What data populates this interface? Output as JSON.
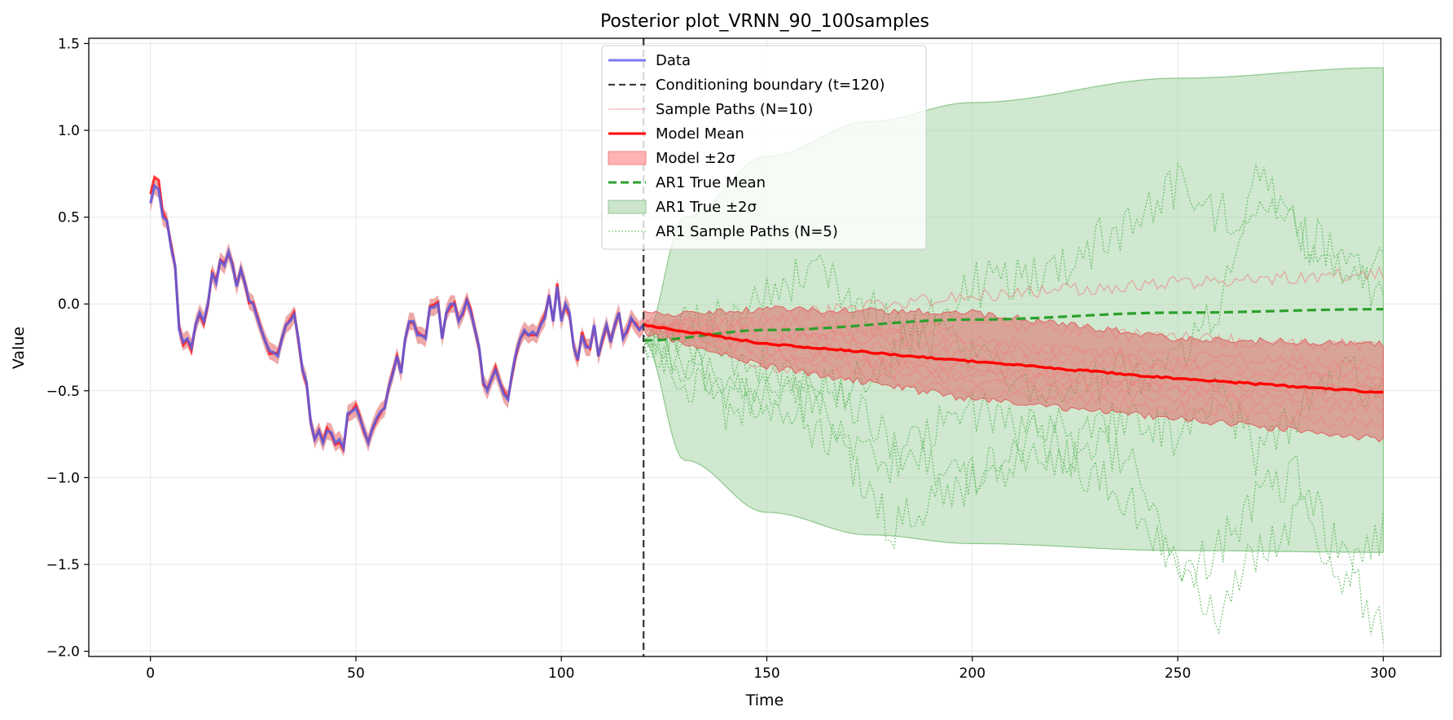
{
  "chart_data": {
    "type": "line",
    "title": "Posterior plot_VRNN_90_100samples",
    "xlabel": "Time",
    "ylabel": "Value",
    "xlim": [
      -15,
      314
    ],
    "ylim": [
      -2.03,
      1.53
    ],
    "xticks": [
      0,
      50,
      100,
      150,
      200,
      250,
      300
    ],
    "xtick_labels": [
      "0",
      "50",
      "100",
      "150",
      "200",
      "250",
      "300"
    ],
    "yticks": [
      -2.0,
      -1.5,
      -1.0,
      -0.5,
      0.0,
      0.5,
      1.0,
      1.5
    ],
    "ytick_labels": [
      "−2.0",
      "−1.5",
      "−1.0",
      "−0.5",
      "0.0",
      "0.5",
      "1.0",
      "1.5"
    ],
    "grid": true,
    "legend_position": "top-center",
    "conditioning_boundary": 120,
    "legend": [
      {
        "label": "Data",
        "kind": "line",
        "color": "#7a7af0",
        "dash": "",
        "width": 3
      },
      {
        "label": "Conditioning boundary (t=120)",
        "kind": "line",
        "color": "#404040",
        "dash": "8,5",
        "width": 2.2
      },
      {
        "label": "Sample Paths (N=10)",
        "kind": "line",
        "color": "#f4a6a6",
        "dash": "",
        "width": 1
      },
      {
        "label": "Model Mean",
        "kind": "line",
        "color": "#ff0000",
        "dash": "",
        "width": 3
      },
      {
        "label": "Model ±2σ",
        "kind": "patch",
        "color": "#ffb3b3",
        "edge": "#f08080"
      },
      {
        "label": "AR1 True Mean",
        "kind": "line",
        "color": "#2ca02c",
        "dash": "10,5",
        "width": 3
      },
      {
        "label": "AR1 True ±2σ",
        "kind": "patch",
        "color": "#cce5cc",
        "edge": "#90c890"
      },
      {
        "label": "AR1 Sample Paths (N=5)",
        "kind": "line",
        "color": "#6abf6a",
        "dash": "2,2",
        "width": 1
      }
    ],
    "data_series": {
      "name": "Data",
      "x": [
        0,
        1,
        2,
        3,
        4,
        5,
        6,
        7,
        8,
        9,
        10,
        11,
        12,
        13,
        14,
        15,
        16,
        17,
        18,
        19,
        20,
        21,
        22,
        23,
        24,
        25,
        26,
        27,
        28,
        29,
        30,
        31,
        32,
        33,
        34,
        35,
        36,
        37,
        38,
        39,
        40,
        41,
        42,
        43,
        44,
        45,
        46,
        47,
        48,
        49,
        50,
        51,
        52,
        53,
        54,
        55,
        56,
        57,
        58,
        59,
        60,
        61,
        62,
        63,
        64,
        65,
        66,
        67,
        68,
        69,
        70,
        71,
        72,
        73,
        74,
        75,
        76,
        77,
        78,
        79,
        80,
        81,
        82,
        83,
        84,
        85,
        86,
        87,
        88,
        89,
        90,
        91,
        92,
        93,
        94,
        95,
        96,
        97,
        98,
        99,
        100,
        101,
        102,
        103,
        104,
        105,
        106,
        107,
        108,
        109,
        110,
        111,
        112,
        113,
        114,
        115,
        116,
        117,
        118,
        119,
        120
      ],
      "y": [
        0.58,
        0.68,
        0.66,
        0.5,
        0.48,
        0.33,
        0.22,
        -0.15,
        -0.22,
        -0.2,
        -0.25,
        -0.12,
        -0.05,
        -0.1,
        0.0,
        0.18,
        0.12,
        0.25,
        0.22,
        0.3,
        0.22,
        0.1,
        0.2,
        0.12,
        0.02,
        0.0,
        -0.08,
        -0.15,
        -0.22,
        -0.27,
        -0.28,
        -0.3,
        -0.2,
        -0.12,
        -0.1,
        -0.06,
        -0.2,
        -0.38,
        -0.45,
        -0.68,
        -0.78,
        -0.73,
        -0.8,
        -0.73,
        -0.74,
        -0.8,
        -0.78,
        -0.83,
        -0.63,
        -0.62,
        -0.6,
        -0.66,
        -0.73,
        -0.8,
        -0.72,
        -0.66,
        -0.62,
        -0.6,
        -0.48,
        -0.4,
        -0.3,
        -0.4,
        -0.2,
        -0.1,
        -0.1,
        -0.18,
        -0.18,
        -0.2,
        -0.02,
        -0.02,
        0.0,
        -0.2,
        -0.05,
        0.0,
        0.0,
        -0.1,
        -0.05,
        0.02,
        -0.05,
        -0.15,
        -0.25,
        -0.45,
        -0.5,
        -0.43,
        -0.38,
        -0.45,
        -0.52,
        -0.55,
        -0.4,
        -0.28,
        -0.2,
        -0.15,
        -0.18,
        -0.16,
        -0.18,
        -0.12,
        -0.08,
        0.05,
        -0.1,
        0.1,
        -0.1,
        0.0,
        -0.05,
        -0.25,
        -0.32,
        -0.18,
        -0.25,
        -0.25,
        -0.12,
        -0.3,
        -0.2,
        -0.12,
        -0.22,
        -0.12,
        -0.05,
        -0.2,
        -0.15,
        -0.08,
        -0.12,
        -0.15,
        -0.12
      ]
    },
    "model_band_history": {
      "name": "Model ±2σ (conditioned region)",
      "half_width": 0.05
    },
    "model_mean": {
      "name": "Model Mean",
      "x": [
        120,
        150,
        200,
        250,
        300
      ],
      "y": [
        -0.12,
        -0.23,
        -0.33,
        -0.43,
        -0.51
      ]
    },
    "model_band": {
      "name": "Model ±2σ",
      "x": [
        120,
        150,
        200,
        250,
        300
      ],
      "lower": [
        -0.16,
        -0.36,
        -0.55,
        -0.66,
        -0.78
      ],
      "upper": [
        -0.06,
        -0.03,
        -0.05,
        -0.2,
        -0.23
      ]
    },
    "ar1_mean": {
      "name": "AR1 True Mean",
      "x": [
        120,
        150,
        200,
        250,
        300
      ],
      "y": [
        -0.21,
        -0.15,
        -0.09,
        -0.05,
        -0.03
      ]
    },
    "ar1_band": {
      "name": "AR1 True ±2σ",
      "x": [
        120,
        130,
        150,
        175,
        200,
        250,
        300
      ],
      "lower": [
        -0.21,
        -0.9,
        -1.2,
        -1.33,
        -1.38,
        -1.42,
        -1.43
      ],
      "upper": [
        -0.21,
        0.5,
        0.85,
        1.05,
        1.16,
        1.3,
        1.36
      ]
    },
    "sample_paths": [
      {
        "x": [
          120,
          150,
          200,
          250,
          300
        ],
        "y": [
          -0.12,
          -0.08,
          0.05,
          0.12,
          0.18
        ]
      },
      {
        "x": [
          120,
          150,
          200,
          250,
          300
        ],
        "y": [
          -0.12,
          -0.2,
          -0.1,
          -0.2,
          -0.25
        ]
      },
      {
        "x": [
          120,
          150,
          200,
          250,
          300
        ],
        "y": [
          -0.12,
          -0.25,
          -0.35,
          -0.45,
          -0.5
        ]
      },
      {
        "x": [
          120,
          150,
          200,
          250,
          300
        ],
        "y": [
          -0.12,
          -0.3,
          -0.45,
          -0.55,
          -0.6
        ]
      },
      {
        "x": [
          120,
          150,
          200,
          250,
          300
        ],
        "y": [
          -0.12,
          -0.18,
          -0.3,
          -0.38,
          -0.45
        ]
      },
      {
        "x": [
          120,
          150,
          200,
          250,
          300
        ],
        "y": [
          -0.12,
          -0.35,
          -0.5,
          -0.6,
          -0.7
        ]
      },
      {
        "x": [
          120,
          150,
          200,
          250,
          300
        ],
        "y": [
          -0.12,
          -0.15,
          -0.25,
          -0.3,
          -0.35
        ]
      },
      {
        "x": [
          120,
          150,
          200,
          250,
          300
        ],
        "y": [
          -0.12,
          -0.22,
          -0.4,
          -0.5,
          -0.55
        ]
      },
      {
        "x": [
          120,
          150,
          200,
          250,
          300
        ],
        "y": [
          -0.12,
          -0.1,
          -0.2,
          -0.35,
          -0.4
        ]
      },
      {
        "x": [
          120,
          150,
          200,
          250,
          300
        ],
        "y": [
          -0.12,
          -0.28,
          -0.38,
          -0.48,
          -0.5
        ]
      }
    ],
    "ar1_sample_paths": [
      {
        "x": [
          120,
          140,
          160,
          180,
          200,
          220,
          240,
          250,
          260,
          270,
          280,
          290,
          300
        ],
        "y": [
          -0.21,
          -0.4,
          -0.6,
          -0.3,
          0.1,
          0.2,
          0.5,
          0.7,
          0.5,
          0.6,
          0.4,
          0.2,
          0.3
        ]
      },
      {
        "x": [
          120,
          140,
          160,
          180,
          200,
          220,
          240,
          250,
          260,
          270,
          280,
          290,
          300
        ],
        "y": [
          -0.21,
          -0.5,
          -0.7,
          -0.9,
          -0.6,
          -0.8,
          -1.2,
          -1.5,
          -1.8,
          -1.4,
          -1.2,
          -1.6,
          -1.3
        ]
      },
      {
        "x": [
          120,
          140,
          160,
          180,
          200,
          220,
          240,
          250,
          260,
          270,
          280,
          290,
          300
        ],
        "y": [
          -0.21,
          -0.3,
          -0.5,
          -1.3,
          -1.0,
          -0.7,
          -0.9,
          -1.6,
          -1.4,
          -1.1,
          -1.0,
          -1.5,
          -1.88
        ]
      },
      {
        "x": [
          120,
          140,
          160,
          180,
          200,
          220,
          240,
          250,
          260,
          270,
          280,
          290,
          300
        ],
        "y": [
          -0.21,
          -0.1,
          0.2,
          -0.1,
          -0.3,
          -0.5,
          -0.4,
          -0.3,
          0.0,
          0.8,
          0.4,
          0.3,
          0.0
        ]
      },
      {
        "x": [
          120,
          140,
          160,
          180,
          200,
          220,
          240,
          250,
          260,
          270,
          280,
          290,
          300
        ],
        "y": [
          -0.21,
          -0.6,
          -0.4,
          -0.8,
          -1.0,
          -0.9,
          -0.6,
          -0.8,
          -0.5,
          -0.9,
          -0.6,
          -0.4,
          -0.5
        ]
      }
    ],
    "colors": {
      "data": "#5a5ae0",
      "data_halo": "#ff3030",
      "model_band_fill": "#e06060",
      "model_mean": "#ff0000",
      "sample_paths": "#f08080",
      "ar1_band_fill": "#a8d5a8",
      "ar1_band_edge": "#8cc88c",
      "ar1_mean": "#2ca02c",
      "ar1_paths": "#5cb85c",
      "boundary": "#404040",
      "grid": "#e6e6e6"
    }
  }
}
